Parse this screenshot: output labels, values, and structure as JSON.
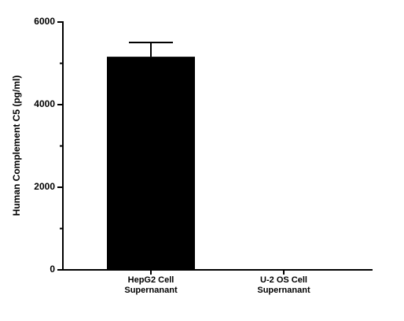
{
  "chart_data": {
    "type": "bar",
    "y_label": "Human Complement C5 (pg/ml)",
    "categories": [
      "HepG2 Cell Supernanant",
      "U-2 OS Cell Supernanant"
    ],
    "values": [
      5160,
      0
    ],
    "errors": [
      345,
      null
    ],
    "color": "#000000",
    "ylim": [
      0,
      6000
    ],
    "yticks": [
      0,
      2000,
      4000,
      6000
    ],
    "yminor_ticks": [
      1000,
      3000,
      5000
    ]
  }
}
